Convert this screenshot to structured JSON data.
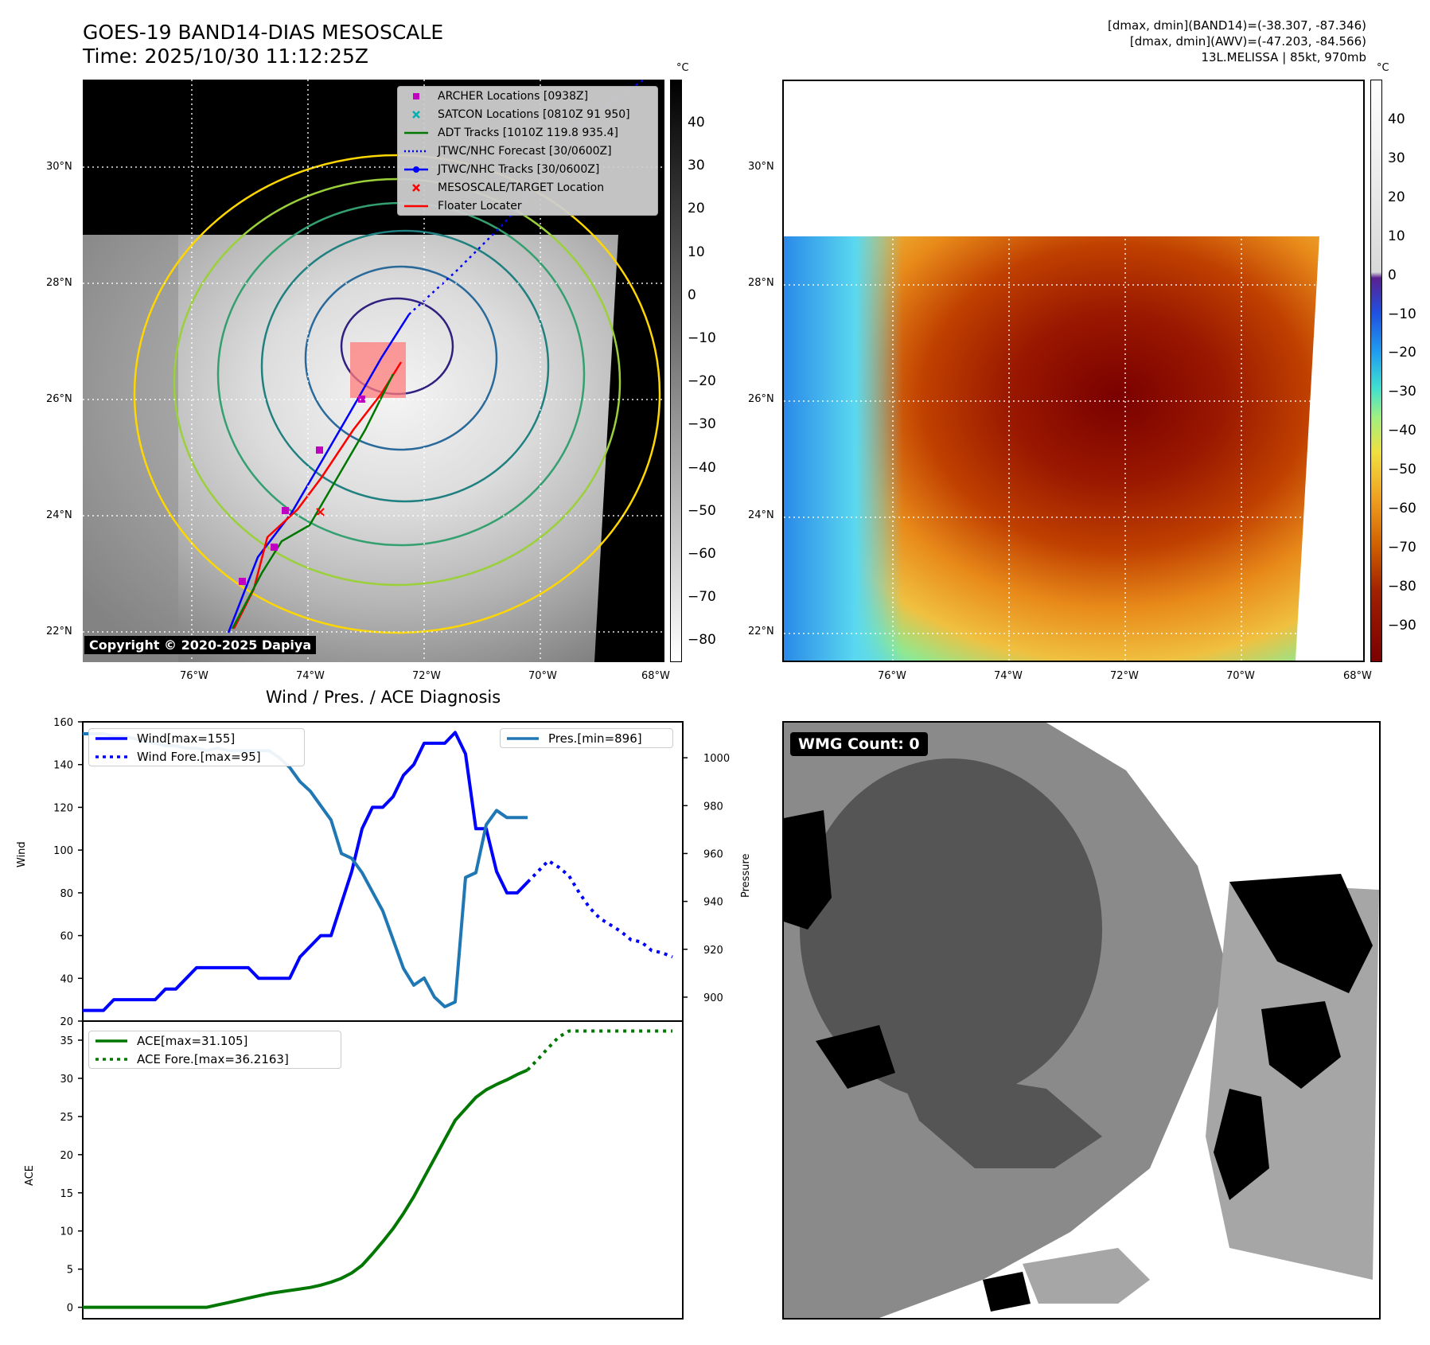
{
  "header": {
    "title_line1": "GOES-19 BAND14-DIAS MESOSCALE",
    "title_line2": "Time: 2025/10/30 11:12:25Z",
    "info_line1": "[dmax, dmin](BAND14)=(-38.307, -87.346)",
    "info_line2": "[dmax, dmin](AWV)=(-47.203, -84.566)",
    "info_line3": "13L.MELISSA | 85kt, 970mb"
  },
  "map_panels": {
    "lat_ticks": [
      "30°N",
      "28°N",
      "26°N",
      "24°N",
      "22°N"
    ],
    "lon_ticks": [
      "76°W",
      "74°W",
      "72°W",
      "70°W",
      "68°W"
    ],
    "copyright": "Copyright © 2020-2025 Dapiya",
    "unit": "°C",
    "gray_colorbar_ticks": [
      "40",
      "30",
      "20",
      "10",
      "0",
      "−10",
      "−20",
      "−30",
      "−40",
      "−50",
      "−60",
      "−70",
      "−80"
    ],
    "color_colorbar_ticks": [
      "40",
      "30",
      "20",
      "10",
      "0",
      "−10",
      "−20",
      "−30",
      "−40",
      "−50",
      "−60",
      "−70",
      "−80",
      "−90"
    ],
    "legend": [
      {
        "label": "ARCHER Locations [0938Z]",
        "color": "#c000c0",
        "marker": "square"
      },
      {
        "label": "SATCON Locations [0810Z 91 950]",
        "color": "#00b0b0",
        "marker": "x"
      },
      {
        "label": "ADT Tracks [1010Z 119.8 935.4]",
        "color": "#007700",
        "marker": "line"
      },
      {
        "label": "JTWC/NHC Forecast [30/0600Z]",
        "color": "#0000ff",
        "marker": "dotted"
      },
      {
        "label": "JTWC/NHC Tracks [30/0600Z]",
        "color": "#0000ff",
        "marker": "line-dot"
      },
      {
        "label": "MESOSCALE/TARGET Location",
        "color": "#ff0000",
        "marker": "x"
      },
      {
        "label": "Floater Locater",
        "color": "#ff0000",
        "marker": "line"
      }
    ]
  },
  "diagnosis": {
    "title": "Wind / Pres. / ACE Diagnosis",
    "wind_ylabel": "Wind",
    "pres_ylabel": "Pressure",
    "ace_ylabel": "ACE",
    "wmg_label": "WMG Count: 0"
  },
  "chart_data": [
    {
      "type": "line",
      "title": "Wind / Pres. / ACE Diagnosis",
      "ylabel": "Wind",
      "ylim": [
        20,
        160
      ],
      "yticks": [
        20,
        40,
        60,
        80,
        100,
        120,
        140,
        160
      ],
      "xlim": [
        0,
        58
      ],
      "series": [
        {
          "name": "Wind[max=155]",
          "color": "#0000ff",
          "style": "solid",
          "x": [
            0,
            2,
            3,
            5,
            6,
            7,
            8,
            9,
            10,
            11,
            12,
            13,
            14,
            15,
            16,
            17,
            18,
            19,
            20,
            21,
            22,
            23,
            24,
            25,
            26,
            27,
            28,
            29,
            30,
            31,
            32,
            33,
            34,
            35,
            36,
            37,
            38,
            39,
            40,
            41,
            42,
            43
          ],
          "y": [
            25,
            25,
            30,
            30,
            30,
            30,
            35,
            35,
            40,
            45,
            45,
            45,
            45,
            45,
            45,
            40,
            40,
            40,
            40,
            50,
            55,
            60,
            60,
            75,
            90,
            110,
            120,
            120,
            125,
            135,
            140,
            150,
            150,
            150,
            155,
            145,
            110,
            110,
            90,
            80,
            80,
            85
          ]
        },
        {
          "name": "Wind Fore.[max=95]",
          "color": "#0000ff",
          "style": "dotted",
          "x": [
            43,
            44,
            45,
            46,
            47,
            48,
            49,
            50,
            51,
            52,
            53,
            54,
            55,
            56,
            57
          ],
          "y": [
            85,
            90,
            95,
            92,
            88,
            80,
            73,
            68,
            65,
            62,
            58,
            57,
            53,
            52,
            50
          ]
        },
        {
          "name": "Pres.[min=896]",
          "color": "#1f77b4",
          "style": "solid",
          "axis": "right",
          "x": [
            0,
            1,
            2,
            3,
            4,
            5,
            6,
            7,
            8,
            9,
            10,
            11,
            12,
            13,
            14,
            15,
            16,
            17,
            18,
            19,
            20,
            21,
            22,
            23,
            24,
            25,
            26,
            27,
            28,
            29,
            30,
            31,
            32,
            33,
            34,
            35,
            36,
            37,
            38,
            39,
            40,
            41,
            42,
            43
          ],
          "y": [
            1010,
            1010,
            1010,
            1009,
            1009,
            1008,
            1007,
            1006,
            1005,
            1005,
            1004,
            1004,
            1003,
            1004,
            1003,
            1003,
            1003,
            1003,
            1003,
            1000,
            996,
            990,
            986,
            980,
            974,
            960,
            958,
            952,
            944,
            936,
            924,
            912,
            905,
            908,
            900,
            896,
            898,
            950,
            952,
            972,
            978,
            975,
            975,
            975
          ]
        }
      ],
      "y2label": "Pressure",
      "y2lim": [
        890,
        1015
      ],
      "y2ticks": [
        900,
        920,
        940,
        960,
        980,
        1000
      ]
    },
    {
      "type": "line",
      "ylabel": "ACE",
      "ylim": [
        -1.5,
        37.5
      ],
      "yticks": [
        0,
        5,
        10,
        15,
        20,
        25,
        30,
        35
      ],
      "xlim": [
        0,
        58
      ],
      "series": [
        {
          "name": "ACE[max=31.105]",
          "color": "#007700",
          "style": "solid",
          "x": [
            0,
            2,
            4,
            6,
            8,
            10,
            11,
            12,
            13,
            14,
            15,
            16,
            17,
            18,
            19,
            20,
            21,
            22,
            23,
            24,
            25,
            26,
            27,
            28,
            29,
            30,
            31,
            32,
            33,
            34,
            35,
            36,
            37,
            38,
            39,
            40,
            41,
            42,
            43
          ],
          "y": [
            0,
            0,
            0,
            0,
            0,
            0,
            0,
            0,
            0.3,
            0.6,
            0.9,
            1.2,
            1.5,
            1.8,
            2.0,
            2.2,
            2.4,
            2.6,
            2.9,
            3.3,
            3.8,
            4.5,
            5.5,
            7.0,
            8.6,
            10.3,
            12.3,
            14.5,
            17.0,
            19.5,
            22.0,
            24.5,
            26.0,
            27.5,
            28.5,
            29.2,
            29.8,
            30.5,
            31.1
          ]
        },
        {
          "name": "ACE Fore.[max=36.2163]",
          "color": "#007700",
          "style": "dotted",
          "x": [
            43,
            44,
            45,
            46,
            47,
            48,
            49,
            50,
            51,
            52,
            53,
            54,
            55,
            56,
            57
          ],
          "y": [
            31.1,
            32.5,
            34.0,
            35.4,
            36.2,
            36.2,
            36.2,
            36.2,
            36.2,
            36.2,
            36.2,
            36.2,
            36.2,
            36.2,
            36.2
          ]
        }
      ]
    }
  ]
}
